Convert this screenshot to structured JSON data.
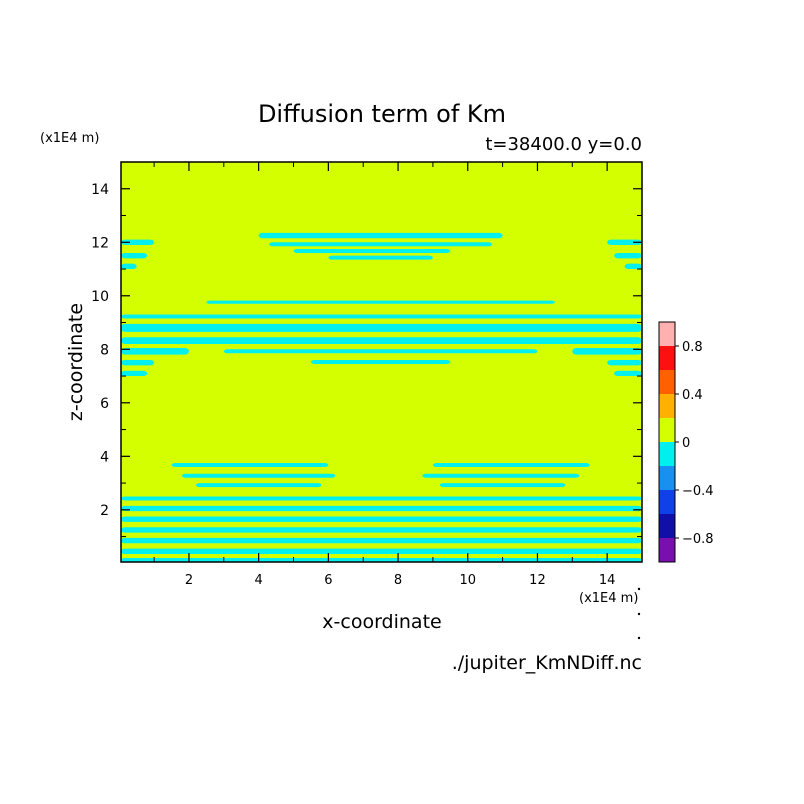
{
  "chart_data": {
    "type": "contour",
    "title": "Diffusion term of Km",
    "subtitle": "t=38400.0 y=0.0",
    "xlabel": "x-coordinate",
    "ylabel": "z-coordinate",
    "x_unit": "(x1E4 m)",
    "y_unit": "(x1E4 m)",
    "source_file": "./jupiter_KmNDiff.nc",
    "xlim": [
      0.05,
      15.0
    ],
    "ylim": [
      0.05,
      15.0
    ],
    "x_ticks": [
      2,
      4,
      6,
      8,
      10,
      12,
      14
    ],
    "y_ticks": [
      2,
      4,
      6,
      8,
      10,
      12,
      14
    ],
    "x_tick_labels": [
      "2",
      "4",
      "6",
      "8",
      "10",
      "12",
      "14"
    ],
    "y_tick_labels": [
      "2",
      "4",
      "6",
      "8",
      "10",
      "12",
      "14"
    ],
    "colorbar": {
      "levels": [
        -1.0,
        -0.8,
        -0.6,
        -0.4,
        -0.2,
        0.0,
        0.2,
        0.4,
        0.6,
        0.8,
        1.0
      ],
      "colors": [
        "#7a0fb0",
        "#1010a8",
        "#1040e8",
        "#1890f0",
        "#00f0f0",
        "#d4ff00",
        "#ffb000",
        "#ff6000",
        "#ff1010",
        "#ffb0b0"
      ],
      "tick_values": [
        0.8,
        0.4,
        0.0,
        -0.4,
        -0.8
      ],
      "tick_labels": [
        "0.8",
        "0.4",
        "0",
        "−0.4",
        "−0.8"
      ]
    },
    "background_value_color": "#d4ff00",
    "negative_band_color": "#00f0f0",
    "negative_bands": [
      {
        "x": [
          4.0,
          11.0
        ],
        "z": [
          12.15,
          12.35
        ]
      },
      {
        "x": [
          4.3,
          10.7
        ],
        "z": [
          11.85,
          12.0
        ]
      },
      {
        "x": [
          5.0,
          9.5
        ],
        "z": [
          11.6,
          11.75
        ]
      },
      {
        "x": [
          6.0,
          9.0
        ],
        "z": [
          11.35,
          11.5
        ]
      },
      {
        "x": [
          0.05,
          1.0
        ],
        "z": [
          11.9,
          12.1
        ]
      },
      {
        "x": [
          0.05,
          0.8
        ],
        "z": [
          11.4,
          11.6
        ]
      },
      {
        "x": [
          0.05,
          0.5
        ],
        "z": [
          11.0,
          11.2
        ]
      },
      {
        "x": [
          14.0,
          15.0
        ],
        "z": [
          11.9,
          12.1
        ]
      },
      {
        "x": [
          14.2,
          15.0
        ],
        "z": [
          11.4,
          11.6
        ]
      },
      {
        "x": [
          14.5,
          15.0
        ],
        "z": [
          11.0,
          11.2
        ]
      },
      {
        "x": [
          2.5,
          12.5
        ],
        "z": [
          9.7,
          9.82
        ]
      },
      {
        "x": [
          0.05,
          15.0
        ],
        "z": [
          9.15,
          9.3
        ]
      },
      {
        "x": [
          0.05,
          15.0
        ],
        "z": [
          8.65,
          8.95
        ]
      },
      {
        "x": [
          0.05,
          15.0
        ],
        "z": [
          8.2,
          8.45
        ]
      },
      {
        "x": [
          0.05,
          2.0
        ],
        "z": [
          7.8,
          8.05
        ]
      },
      {
        "x": [
          3.0,
          12.0
        ],
        "z": [
          7.85,
          8.0
        ]
      },
      {
        "x": [
          13.0,
          15.0
        ],
        "z": [
          7.8,
          8.05
        ]
      },
      {
        "x": [
          0.05,
          1.0
        ],
        "z": [
          7.4,
          7.6
        ]
      },
      {
        "x": [
          5.5,
          9.5
        ],
        "z": [
          7.45,
          7.6
        ]
      },
      {
        "x": [
          14.0,
          15.0
        ],
        "z": [
          7.4,
          7.6
        ]
      },
      {
        "x": [
          0.05,
          0.8
        ],
        "z": [
          7.0,
          7.2
        ]
      },
      {
        "x": [
          14.2,
          15.0
        ],
        "z": [
          7.0,
          7.2
        ]
      },
      {
        "x": [
          1.5,
          6.0
        ],
        "z": [
          3.6,
          3.75
        ]
      },
      {
        "x": [
          9.0,
          13.5
        ],
        "z": [
          3.6,
          3.75
        ]
      },
      {
        "x": [
          1.8,
          6.2
        ],
        "z": [
          3.2,
          3.35
        ]
      },
      {
        "x": [
          8.7,
          13.2
        ],
        "z": [
          3.2,
          3.35
        ]
      },
      {
        "x": [
          2.2,
          5.8
        ],
        "z": [
          2.85,
          3.0
        ]
      },
      {
        "x": [
          9.2,
          12.8
        ],
        "z": [
          2.85,
          3.0
        ]
      },
      {
        "x": [
          0.05,
          15.0
        ],
        "z": [
          2.35,
          2.5
        ]
      },
      {
        "x": [
          0.05,
          15.0
        ],
        "z": [
          1.95,
          2.15
        ]
      },
      {
        "x": [
          0.05,
          15.0
        ],
        "z": [
          1.55,
          1.75
        ]
      },
      {
        "x": [
          0.05,
          15.0
        ],
        "z": [
          1.15,
          1.35
        ]
      },
      {
        "x": [
          0.05,
          15.0
        ],
        "z": [
          0.75,
          0.95
        ]
      },
      {
        "x": [
          0.05,
          15.0
        ],
        "z": [
          0.35,
          0.55
        ]
      },
      {
        "x": [
          0.05,
          15.0
        ],
        "z": [
          0.05,
          0.2
        ]
      }
    ]
  }
}
